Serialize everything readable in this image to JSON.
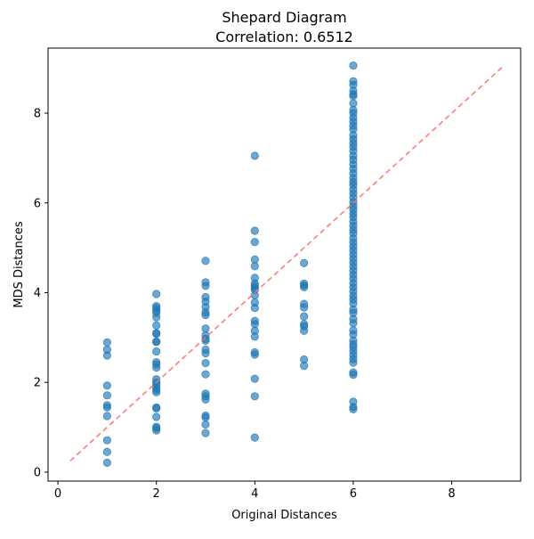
{
  "chart_data": {
    "type": "scatter",
    "title": "Shepard Diagram",
    "subtitle": "Correlation: 0.6512",
    "xlabel": "Original Distances",
    "ylabel": "MDS Distances",
    "xlim": [
      -0.2,
      9.4
    ],
    "ylim": [
      -0.2,
      9.45
    ],
    "x_ticks": [
      0,
      2,
      4,
      6,
      8
    ],
    "y_ticks": [
      0,
      2,
      4,
      6,
      8
    ],
    "grid": false,
    "point_color": "#1f77b4",
    "reference_line": {
      "style": "dashed",
      "color": "#ff6f69",
      "from": [
        0.25,
        0.25
      ],
      "to": [
        9.06,
        9.06
      ]
    },
    "series": [
      {
        "points": [
          [
            1,
            2.89
          ],
          [
            1,
            2.73
          ],
          [
            1,
            2.6
          ],
          [
            1,
            1.93
          ],
          [
            1,
            1.71
          ],
          [
            1,
            1.49
          ],
          [
            1,
            1.44
          ],
          [
            1,
            1.25
          ],
          [
            1,
            0.71
          ],
          [
            1,
            0.45
          ],
          [
            1,
            0.21
          ],
          [
            2,
            3.97
          ],
          [
            2,
            3.7
          ],
          [
            2,
            3.66
          ],
          [
            2,
            3.6
          ],
          [
            2,
            3.55
          ],
          [
            2,
            3.45
          ],
          [
            2,
            3.27
          ],
          [
            2,
            3.1
          ],
          [
            2,
            3.08
          ],
          [
            2,
            2.91
          ],
          [
            2,
            2.9
          ],
          [
            2,
            2.69
          ],
          [
            2,
            2.45
          ],
          [
            2,
            2.4
          ],
          [
            2,
            2.33
          ],
          [
            2,
            2.07
          ],
          [
            2,
            2.0
          ],
          [
            2,
            1.95
          ],
          [
            2,
            1.88
          ],
          [
            2,
            1.83
          ],
          [
            2,
            1.78
          ],
          [
            2,
            1.44
          ],
          [
            2,
            1.42
          ],
          [
            2,
            1.23
          ],
          [
            2,
            1.01
          ],
          [
            2,
            0.98
          ],
          [
            2,
            0.93
          ],
          [
            3,
            4.71
          ],
          [
            3,
            4.23
          ],
          [
            3,
            4.15
          ],
          [
            3,
            3.9
          ],
          [
            3,
            3.8
          ],
          [
            3,
            3.68
          ],
          [
            3,
            3.56
          ],
          [
            3,
            3.5
          ],
          [
            3,
            3.2
          ],
          [
            3,
            3.05
          ],
          [
            3,
            2.97
          ],
          [
            3,
            2.93
          ],
          [
            3,
            2.73
          ],
          [
            3,
            2.65
          ],
          [
            3,
            2.43
          ],
          [
            3,
            2.18
          ],
          [
            3,
            1.75
          ],
          [
            3,
            1.69
          ],
          [
            3,
            1.62
          ],
          [
            3,
            1.26
          ],
          [
            3,
            1.22
          ],
          [
            3,
            1.06
          ],
          [
            3,
            0.87
          ],
          [
            4,
            7.05
          ],
          [
            4,
            5.38
          ],
          [
            4,
            5.13
          ],
          [
            4,
            4.74
          ],
          [
            4,
            4.59
          ],
          [
            4,
            4.33
          ],
          [
            4,
            4.2
          ],
          [
            4,
            4.15
          ],
          [
            4,
            4.1
          ],
          [
            4,
            4.07
          ],
          [
            4,
            3.94
          ],
          [
            4,
            3.78
          ],
          [
            4,
            3.66
          ],
          [
            4,
            3.37
          ],
          [
            4,
            3.3
          ],
          [
            4,
            3.15
          ],
          [
            4,
            3.02
          ],
          [
            4,
            2.67
          ],
          [
            4,
            2.62
          ],
          [
            4,
            2.08
          ],
          [
            4,
            1.69
          ],
          [
            4,
            0.77
          ],
          [
            5,
            4.66
          ],
          [
            5,
            4.2
          ],
          [
            5,
            4.16
          ],
          [
            5,
            4.12
          ],
          [
            5,
            3.75
          ],
          [
            5,
            3.67
          ],
          [
            5,
            3.47
          ],
          [
            5,
            3.3
          ],
          [
            5,
            3.25
          ],
          [
            5,
            3.15
          ],
          [
            5,
            2.51
          ],
          [
            5,
            2.37
          ],
          [
            6,
            9.06
          ],
          [
            6,
            8.71
          ],
          [
            6,
            8.63
          ],
          [
            6,
            8.5
          ],
          [
            6,
            8.42
          ],
          [
            6,
            8.38
          ],
          [
            6,
            8.22
          ],
          [
            6,
            8.07
          ],
          [
            6,
            8.0
          ],
          [
            6,
            7.9
          ],
          [
            6,
            7.81
          ],
          [
            6,
            7.72
          ],
          [
            6,
            7.64
          ],
          [
            6,
            7.51
          ],
          [
            6,
            7.42
          ],
          [
            6,
            7.33
          ],
          [
            6,
            7.25
          ],
          [
            6,
            7.16
          ],
          [
            6,
            7.05
          ],
          [
            6,
            6.96
          ],
          [
            6,
            6.86
          ],
          [
            6,
            6.76
          ],
          [
            6,
            6.66
          ],
          [
            6,
            6.56
          ],
          [
            6,
            6.47
          ],
          [
            6,
            6.4
          ],
          [
            6,
            6.3
          ],
          [
            6,
            6.21
          ],
          [
            6,
            6.12
          ],
          [
            6,
            6.02
          ],
          [
            6,
            5.93
          ],
          [
            6,
            5.85
          ],
          [
            6,
            5.76
          ],
          [
            6,
            5.68
          ],
          [
            6,
            5.58
          ],
          [
            6,
            5.49
          ],
          [
            6,
            5.4
          ],
          [
            6,
            5.32
          ],
          [
            6,
            5.21
          ],
          [
            6,
            5.12
          ],
          [
            6,
            5.03
          ],
          [
            6,
            4.94
          ],
          [
            6,
            4.85
          ],
          [
            6,
            4.76
          ],
          [
            6,
            4.67
          ],
          [
            6,
            4.58
          ],
          [
            6,
            4.49
          ],
          [
            6,
            4.4
          ],
          [
            6,
            4.31
          ],
          [
            6,
            4.21
          ],
          [
            6,
            4.12
          ],
          [
            6,
            4.03
          ],
          [
            6,
            3.93
          ],
          [
            6,
            3.85
          ],
          [
            6,
            3.76
          ],
          [
            6,
            3.62
          ],
          [
            6,
            3.55
          ],
          [
            6,
            3.41
          ],
          [
            6,
            3.32
          ],
          [
            6,
            3.16
          ],
          [
            6,
            3.07
          ],
          [
            6,
            2.93
          ],
          [
            6,
            2.85
          ],
          [
            6,
            2.78
          ],
          [
            6,
            2.7
          ],
          [
            6,
            2.61
          ],
          [
            6,
            2.52
          ],
          [
            6,
            2.44
          ],
          [
            6,
            2.22
          ],
          [
            6,
            2.17
          ],
          [
            6,
            1.57
          ],
          [
            6,
            1.45
          ],
          [
            6,
            1.4
          ]
        ]
      }
    ]
  }
}
